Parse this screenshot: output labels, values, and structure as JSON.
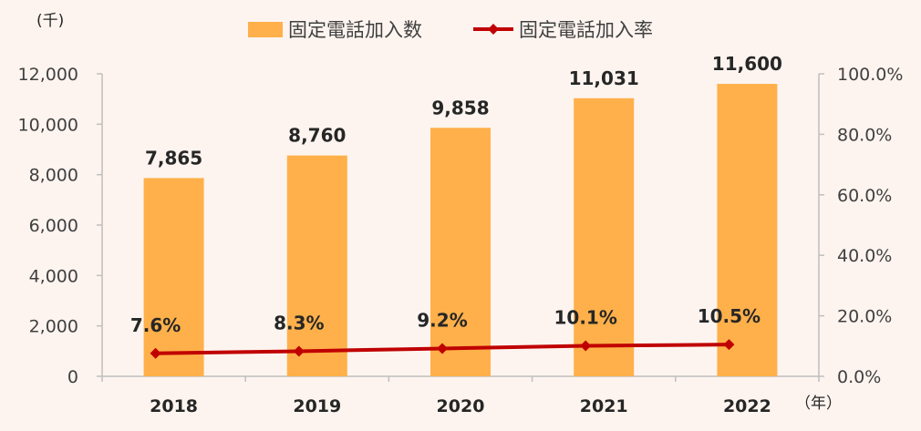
{
  "colors": {
    "bar": "#ffb04a",
    "line": "#c00000",
    "axis": "#bfbfbf",
    "background": "#fdf4ef"
  },
  "chart_data": {
    "type": "bar",
    "categories": [
      "2018",
      "2019",
      "2020",
      "2021",
      "2022"
    ],
    "series": [
      {
        "name": "固定電話加入数",
        "type": "bar",
        "axis": "left",
        "values": [
          7865,
          8760,
          9858,
          11031,
          11600
        ],
        "labels": [
          "7,865",
          "8,760",
          "9,858",
          "11,031",
          "11,600"
        ]
      },
      {
        "name": "固定電話加入率",
        "type": "line",
        "axis": "right",
        "values": [
          7.6,
          8.3,
          9.2,
          10.1,
          10.5
        ],
        "labels": [
          "7.6%",
          "8.3%",
          "9.2%",
          "10.1%",
          "10.5%"
        ]
      }
    ],
    "left_axis": {
      "unit_label": "(千)",
      "ylim": [
        0,
        12000
      ],
      "ticks": [
        "0",
        "2,000",
        "4,000",
        "6,000",
        "8,000",
        "10,000",
        "12,000"
      ]
    },
    "right_axis": {
      "ylim": [
        0,
        100
      ],
      "ticks": [
        "0.0%",
        "20.0%",
        "40.0%",
        "60.0%",
        "80.0%",
        "100.0%"
      ]
    },
    "x_unit_label": "（年）",
    "legend_position": "top",
    "grid": false
  }
}
